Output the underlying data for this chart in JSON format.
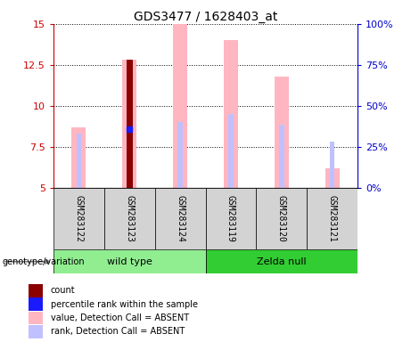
{
  "title": "GDS3477 / 1628403_at",
  "samples": [
    "GSM283122",
    "GSM283123",
    "GSM283124",
    "GSM283119",
    "GSM283120",
    "GSM283121"
  ],
  "ylim_left": [
    5,
    15
  ],
  "ylim_right": [
    0,
    100
  ],
  "yticks_left": [
    5,
    7.5,
    10,
    12.5,
    15
  ],
  "yticks_right": [
    0,
    25,
    50,
    75,
    100
  ],
  "ytick_labels_right": [
    "0%",
    "25%",
    "50%",
    "75%",
    "100%"
  ],
  "value_absent": [
    8.7,
    12.8,
    15.0,
    14.0,
    11.8,
    6.2
  ],
  "rank_absent_val": [
    8.3,
    8.55,
    9.05,
    9.5,
    8.85,
    7.85
  ],
  "count_val": 12.82,
  "count_idx": 1,
  "percentile_val": 8.6,
  "percentile_idx": 1,
  "pink_bar_width": 0.28,
  "blue_bar_width": 0.1,
  "count_bar_width": 0.12,
  "wild_type_indices": [
    0,
    1,
    2
  ],
  "zelda_null_indices": [
    3,
    4,
    5
  ],
  "colors": {
    "count": "#8B0000",
    "percentile": "#1A1AFF",
    "value_absent": "#FFB6C1",
    "rank_absent_bar": "#C0C0FF",
    "group_wt_light": "#AAFFAA",
    "group_wt_dark": "#00CC00",
    "group_zelda_light": "#AAFFAA",
    "group_zelda_dark": "#00CC00",
    "sample_bg": "#D3D3D3",
    "left_axis": "#CC0000",
    "right_axis": "#0000CC",
    "grid": "black"
  },
  "legend_items": [
    {
      "label": "count",
      "color": "#8B0000"
    },
    {
      "label": "percentile rank within the sample",
      "color": "#1A1AFF"
    },
    {
      "label": "value, Detection Call = ABSENT",
      "color": "#FFB6C1"
    },
    {
      "label": "rank, Detection Call = ABSENT",
      "color": "#C0C0FF"
    }
  ],
  "group_wt_color": "#90EE90",
  "group_zelda_color": "#32CD32"
}
